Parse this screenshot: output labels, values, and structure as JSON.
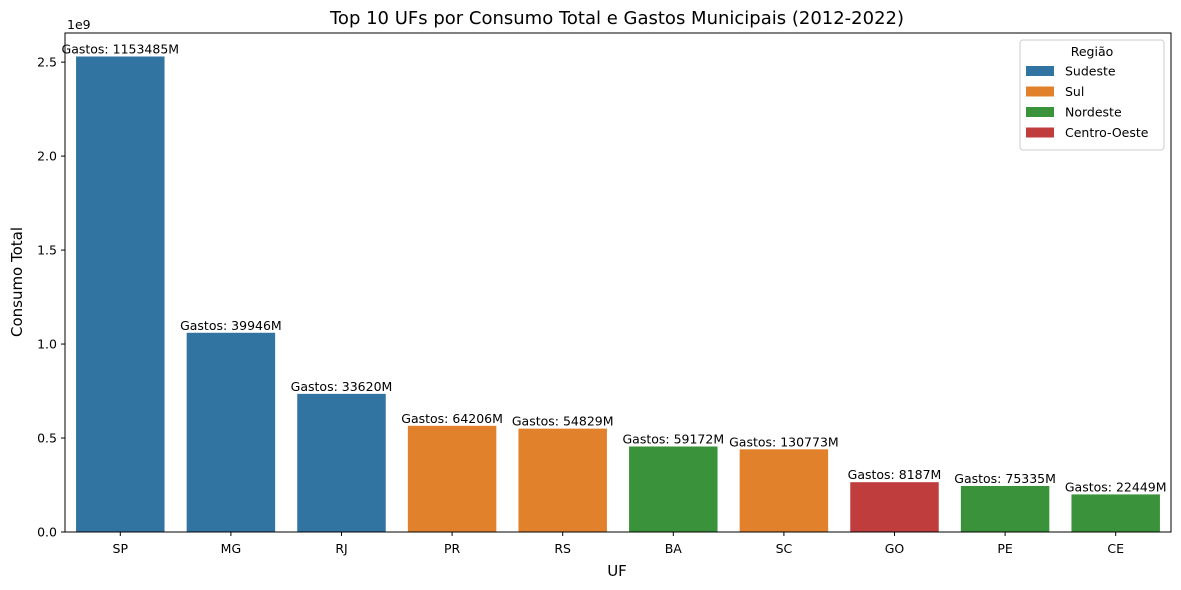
{
  "chart_data": {
    "type": "bar",
    "title": "Top 10 UFs por Consumo Total e Gastos Municipais (2012-2022)",
    "xlabel": "UF",
    "ylabel": "Consumo Total",
    "y_offset_label": "1e9",
    "ylim": [
      0,
      2.655
    ],
    "yticks": [
      "0.0",
      "0.5",
      "1.0",
      "1.5",
      "2.0",
      "2.5"
    ],
    "ytick_values": [
      0,
      0.5,
      1.0,
      1.5,
      2.0,
      2.5
    ],
    "grid": false,
    "legend_position": "top-right",
    "legend_title": "Região",
    "categories": [
      "SP",
      "MG",
      "RJ",
      "PR",
      "RS",
      "BA",
      "SC",
      "GO",
      "PE",
      "CE"
    ],
    "values": [
      2.53,
      1.06,
      0.735,
      0.565,
      0.55,
      0.455,
      0.44,
      0.265,
      0.245,
      0.2
    ],
    "regions": [
      "Sudeste",
      "Sudeste",
      "Sudeste",
      "Sul",
      "Sul",
      "Nordeste",
      "Sul",
      "Centro-Oeste",
      "Nordeste",
      "Nordeste"
    ],
    "data_labels": [
      "Gastos: 1153485M",
      "Gastos: 39946M",
      "Gastos: 33620M",
      "Gastos: 64206M",
      "Gastos: 54829M",
      "Gastos: 59172M",
      "Gastos: 130773M",
      "Gastos: 8187M",
      "Gastos: 75335M",
      "Gastos: 22449M"
    ],
    "legend": [
      {
        "name": "Sudeste",
        "color": "#3274a1"
      },
      {
        "name": "Sul",
        "color": "#e1812c"
      },
      {
        "name": "Nordeste",
        "color": "#3a923a"
      },
      {
        "name": "Centro-Oeste",
        "color": "#c03d3e"
      }
    ]
  }
}
